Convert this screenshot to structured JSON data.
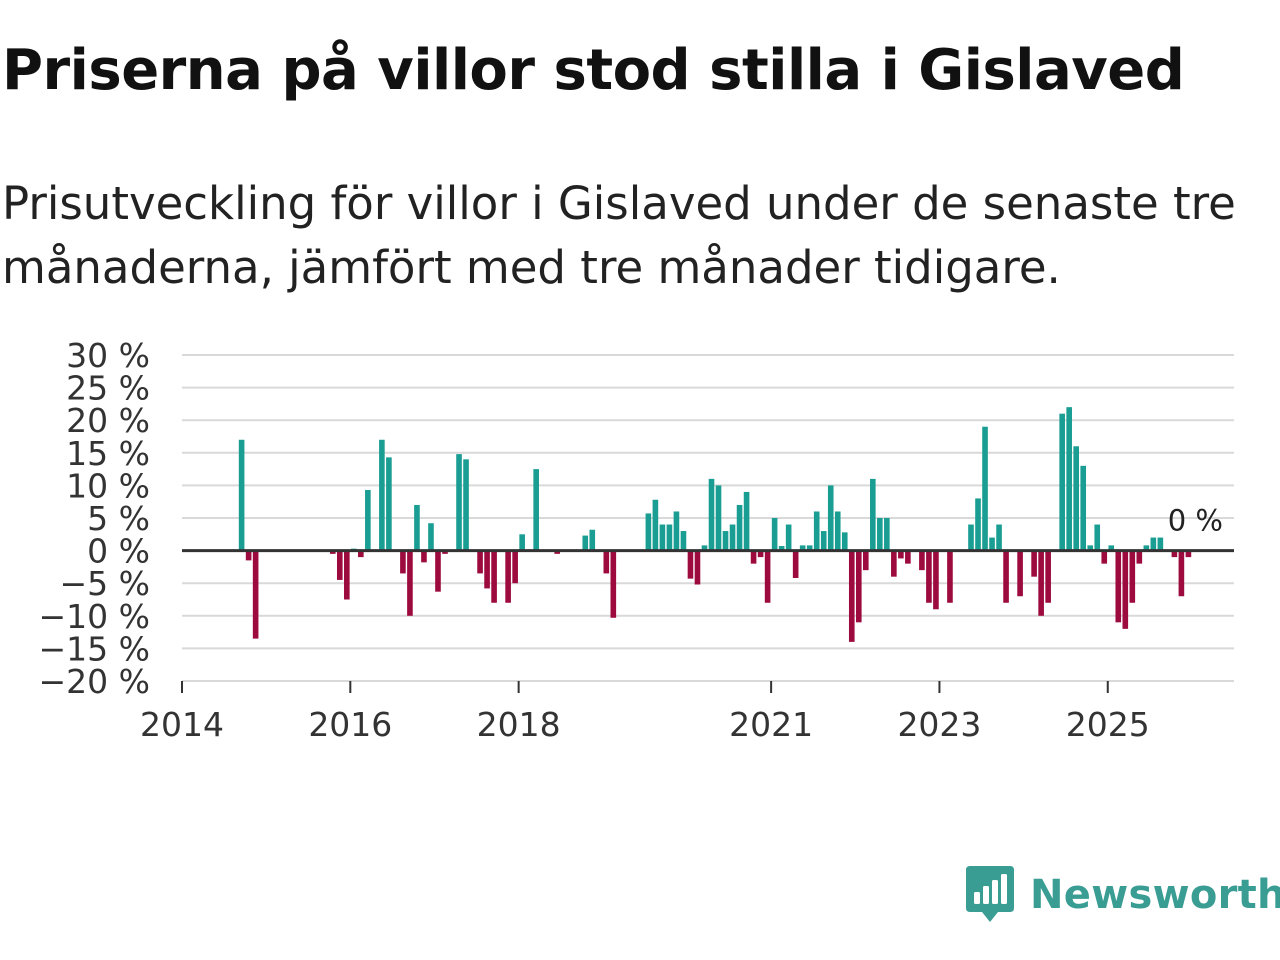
{
  "header": {
    "title": "Priserna på villor stod stilla i Gislaved",
    "subtitle": "Prisutveckling för villor i Gislaved under de senaste tre månaderna, jämfört med tre månader tidigare."
  },
  "brand": {
    "name": "Newsworthy",
    "icon": "newsworthy-logo-icon",
    "color": "#3a9d94"
  },
  "colors": {
    "positive": "#1a9e93",
    "negative": "#9c0a3e",
    "grid": "#d9d9d9",
    "zero_line": "#333333"
  },
  "chart_data": {
    "type": "bar",
    "title": "Priserna på villor stod stilla i Gislaved",
    "xlabel": "",
    "ylabel": "",
    "unit": "%",
    "ylim": [
      -20,
      30
    ],
    "y_ticks": [
      30,
      25,
      20,
      15,
      10,
      5,
      0,
      -5,
      -10,
      -15,
      -20
    ],
    "y_tick_labels": [
      "30 %",
      "25 %",
      "20 %",
      "15 %",
      "10 %",
      "5 %",
      "0 %",
      "−5 %",
      "−10 %",
      "−15 %",
      "−20 %"
    ],
    "x_range": [
      "2014-01",
      "2026-07"
    ],
    "x_tick_labels": [
      {
        "date": "2014-01",
        "label": "2014"
      },
      {
        "date": "2016-01",
        "label": "2016"
      },
      {
        "date": "2018-01",
        "label": "2018"
      },
      {
        "date": "2021-01",
        "label": "2021"
      },
      {
        "date": "2023-01",
        "label": "2023"
      },
      {
        "date": "2025-01",
        "label": "2025"
      }
    ],
    "annotation": {
      "date": "2025-09",
      "value": 0,
      "label": "0 %"
    },
    "series": [
      {
        "name": "Prisutveckling",
        "values": [
          [
            "2014-09",
            17
          ],
          [
            "2014-10",
            -1.5
          ],
          [
            "2014-11",
            -13.5
          ],
          [
            "2015-10",
            -0.5
          ],
          [
            "2015-11",
            -4.5
          ],
          [
            "2015-12",
            -7.5
          ],
          [
            "2016-01",
            0.3
          ],
          [
            "2016-02",
            -1
          ],
          [
            "2016-03",
            9.3
          ],
          [
            "2016-04",
            0
          ],
          [
            "2016-05",
            17
          ],
          [
            "2016-06",
            14.3
          ],
          [
            "2016-07",
            0
          ],
          [
            "2016-08",
            -3.5
          ],
          [
            "2016-09",
            -10
          ],
          [
            "2016-10",
            7
          ],
          [
            "2016-11",
            -1.8
          ],
          [
            "2016-12",
            4.2
          ],
          [
            "2017-01",
            -6.3
          ],
          [
            "2017-02",
            -0.5
          ],
          [
            "2017-03",
            0
          ],
          [
            "2017-04",
            14.8
          ],
          [
            "2017-05",
            14
          ],
          [
            "2017-06",
            0
          ],
          [
            "2017-07",
            -3.5
          ],
          [
            "2017-08",
            -5.8
          ],
          [
            "2017-09",
            -8
          ],
          [
            "2017-10",
            0
          ],
          [
            "2017-11",
            -8
          ],
          [
            "2017-12",
            -5
          ],
          [
            "2018-01",
            2.5
          ],
          [
            "2018-02",
            0
          ],
          [
            "2018-03",
            12.5
          ],
          [
            "2018-06",
            -0.5
          ],
          [
            "2018-10",
            2.3
          ],
          [
            "2018-11",
            3.2
          ],
          [
            "2018-12",
            0
          ],
          [
            "2019-01",
            -3.5
          ],
          [
            "2019-02",
            -10.3
          ],
          [
            "2019-07",
            5.7
          ],
          [
            "2019-08",
            7.8
          ],
          [
            "2019-09",
            4
          ],
          [
            "2019-10",
            4
          ],
          [
            "2019-11",
            6
          ],
          [
            "2019-12",
            3
          ],
          [
            "2020-01",
            -4.3
          ],
          [
            "2020-02",
            -5.2
          ],
          [
            "2020-03",
            0.8
          ],
          [
            "2020-04",
            11
          ],
          [
            "2020-05",
            10
          ],
          [
            "2020-06",
            3
          ],
          [
            "2020-07",
            4
          ],
          [
            "2020-08",
            7
          ],
          [
            "2020-09",
            9
          ],
          [
            "2020-10",
            -2
          ],
          [
            "2020-11",
            -1
          ],
          [
            "2020-12",
            -8
          ],
          [
            "2021-01",
            5
          ],
          [
            "2021-02",
            0.7
          ],
          [
            "2021-03",
            4
          ],
          [
            "2021-04",
            -4.2
          ],
          [
            "2021-05",
            0.8
          ],
          [
            "2021-06",
            0.8
          ],
          [
            "2021-07",
            6
          ],
          [
            "2021-08",
            3
          ],
          [
            "2021-09",
            10
          ],
          [
            "2021-10",
            6
          ],
          [
            "2021-11",
            2.8
          ],
          [
            "2021-12",
            -14
          ],
          [
            "2022-01",
            -11
          ],
          [
            "2022-02",
            -3
          ],
          [
            "2022-03",
            11
          ],
          [
            "2022-04",
            5
          ],
          [
            "2022-05",
            5
          ],
          [
            "2022-06",
            -4
          ],
          [
            "2022-07",
            -1.2
          ],
          [
            "2022-08",
            -2
          ],
          [
            "2022-09",
            0
          ],
          [
            "2022-10",
            -3
          ],
          [
            "2022-11",
            -8
          ],
          [
            "2022-12",
            -9
          ],
          [
            "2023-02",
            -8
          ],
          [
            "2023-05",
            4
          ],
          [
            "2023-06",
            8
          ],
          [
            "2023-07",
            19
          ],
          [
            "2023-08",
            2
          ],
          [
            "2023-09",
            4
          ],
          [
            "2023-10",
            -8
          ],
          [
            "2023-12",
            -7
          ],
          [
            "2024-02",
            -4
          ],
          [
            "2024-03",
            -10
          ],
          [
            "2024-04",
            -8
          ],
          [
            "2024-06",
            21
          ],
          [
            "2024-07",
            22
          ],
          [
            "2024-08",
            16
          ],
          [
            "2024-09",
            13
          ],
          [
            "2024-10",
            0.8
          ],
          [
            "2024-11",
            4
          ],
          [
            "2024-12",
            -2
          ],
          [
            "2025-01",
            0.8
          ],
          [
            "2025-02",
            -11
          ],
          [
            "2025-03",
            -12
          ],
          [
            "2025-04",
            -8
          ],
          [
            "2025-05",
            -2
          ],
          [
            "2025-06",
            0.8
          ],
          [
            "2025-07",
            2
          ],
          [
            "2025-08",
            2
          ],
          [
            "2025-09",
            0
          ],
          [
            "2025-10",
            -1
          ],
          [
            "2025-11",
            -7
          ],
          [
            "2025-12",
            -1
          ]
        ]
      }
    ]
  }
}
